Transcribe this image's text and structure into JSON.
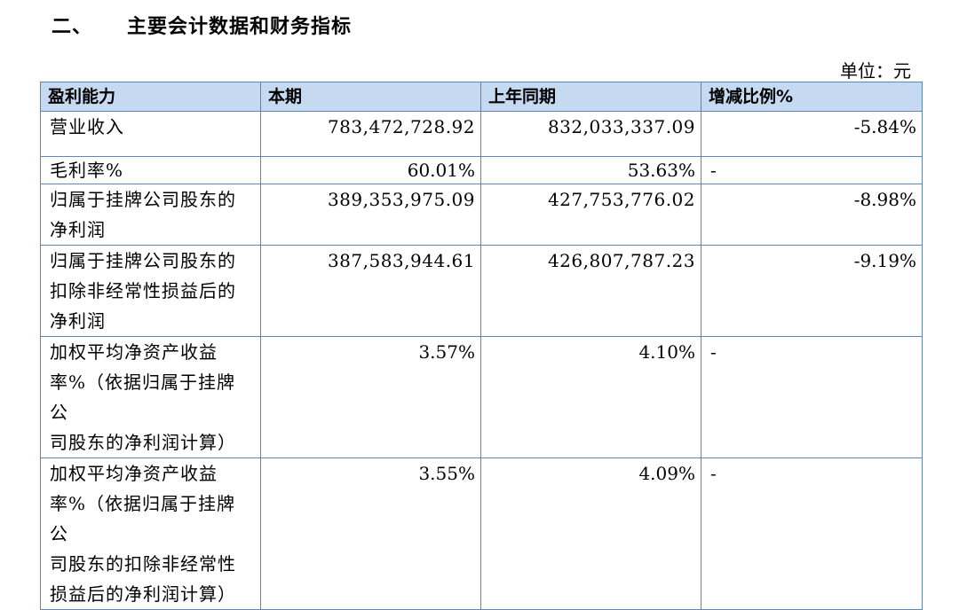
{
  "section": {
    "number": "二、",
    "title": "主要会计数据和财务指标"
  },
  "unit_label": "单位：元",
  "table": {
    "headers": [
      "盈利能力",
      "本期",
      "上年同期",
      "增减比例%"
    ],
    "rows": [
      {
        "label_lines": [
          "营业收入"
        ],
        "current": "783,472,728.92",
        "previous": "832,033,337.09",
        "change": "-5.84%"
      },
      {
        "label_lines": [
          "毛利率%"
        ],
        "current": "60.01%",
        "previous": "53.63%",
        "change": "-"
      },
      {
        "label_lines": [
          "归属于挂牌公司股东的",
          "净利润"
        ],
        "current": "389,353,975.09",
        "previous": "427,753,776.02",
        "change": "-8.98%"
      },
      {
        "label_lines": [
          "归属于挂牌公司股东的",
          "扣除非经常性损益后的",
          "净利润"
        ],
        "current": "387,583,944.61",
        "previous": "426,807,787.23",
        "change": "-9.19%"
      },
      {
        "label_lines": [
          "加权平均净资产收益",
          "率%（依据归属于挂牌公",
          "司股东的净利润计算）"
        ],
        "current": "3.57%",
        "previous": "4.10%",
        "change": "-"
      },
      {
        "label_lines": [
          "加权平均净资产收益",
          "率%（依据归属于挂牌公",
          "司股东的扣除非经常性",
          "损益后的净利润计算）"
        ],
        "current": "3.55%",
        "previous": "4.09%",
        "change": "-"
      }
    ]
  }
}
